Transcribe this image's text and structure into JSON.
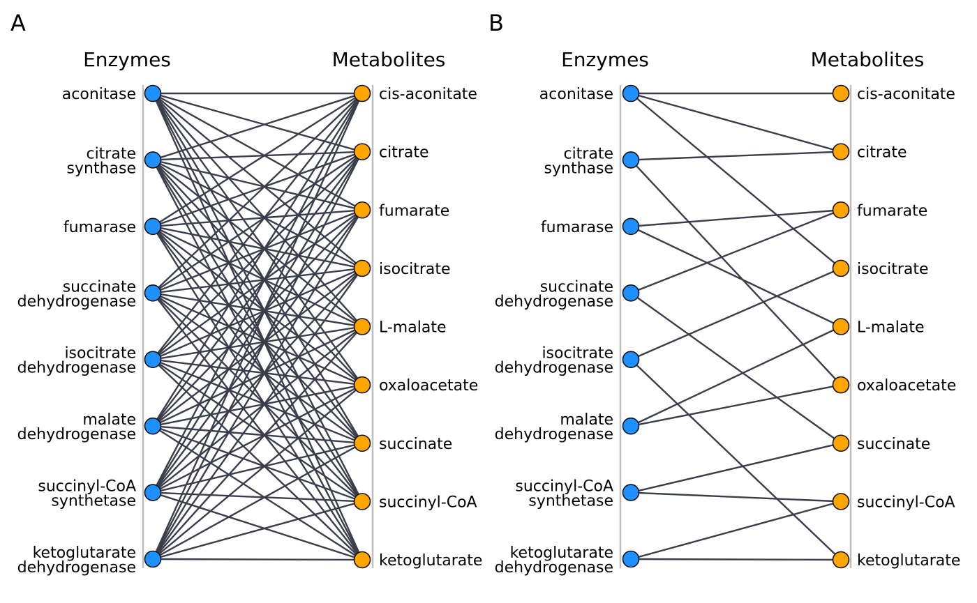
{
  "colors": {
    "enzyme_node": "#1e90ff",
    "metabolite_node": "#ffa500",
    "edge": "#3a3d4a",
    "axis": "#bdbdbd"
  },
  "enzymes": [
    [
      "aconitase"
    ],
    [
      "citrate",
      "synthase"
    ],
    [
      "fumarase"
    ],
    [
      "succinate",
      "dehydrogenase"
    ],
    [
      "isocitrate",
      "dehydrogenase"
    ],
    [
      "malate",
      "dehydrogenase"
    ],
    [
      "succinyl-CoA",
      "synthetase"
    ],
    [
      "ketoglutarate",
      "dehydrogenase"
    ]
  ],
  "metabolites": [
    "cis-aconitate",
    "citrate",
    "fumarate",
    "isocitrate",
    "L-malate",
    "oxaloacetate",
    "succinate",
    "succinyl-CoA",
    "ketoglutarate"
  ],
  "panels": [
    {
      "letter": "A",
      "left_title": "Enzymes",
      "right_title": "Metabolites",
      "edges": "complete"
    },
    {
      "letter": "B",
      "left_title": "Enzymes",
      "right_title": "Metabolites",
      "edges": [
        [
          0,
          0
        ],
        [
          0,
          1
        ],
        [
          0,
          3
        ],
        [
          1,
          1
        ],
        [
          1,
          5
        ],
        [
          2,
          2
        ],
        [
          2,
          4
        ],
        [
          3,
          2
        ],
        [
          3,
          6
        ],
        [
          4,
          3
        ],
        [
          4,
          8
        ],
        [
          5,
          4
        ],
        [
          5,
          5
        ],
        [
          6,
          6
        ],
        [
          6,
          7
        ],
        [
          7,
          7
        ],
        [
          7,
          8
        ]
      ]
    }
  ]
}
